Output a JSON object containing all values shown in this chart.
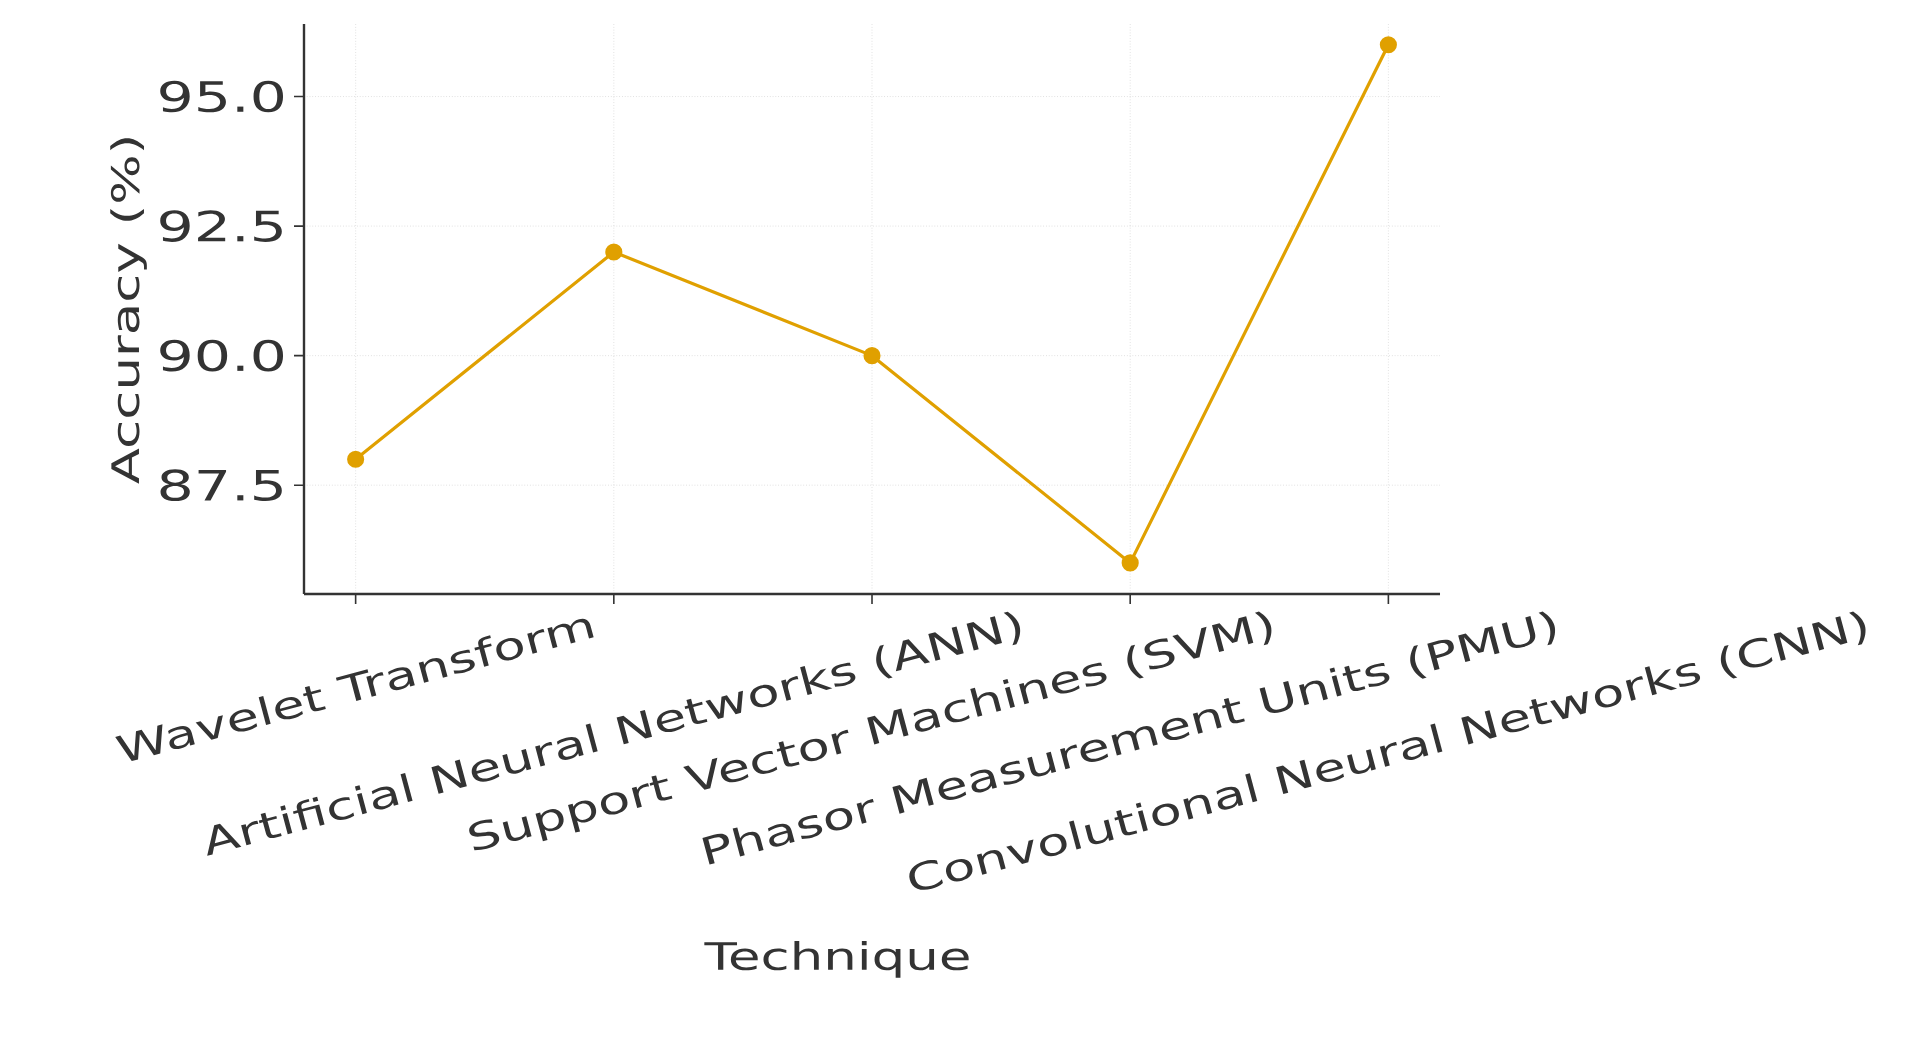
{
  "chart_data": {
    "type": "line",
    "xlabel": "Technique",
    "ylabel": "Accuracy (%)",
    "categories": [
      "Wavelet Transform",
      "Artificial Neural Networks (ANN)",
      "Support Vector Machines (SVM)",
      "Phasor Measurement Units (PMU)",
      "Convolutional Neural Networks (CNN)"
    ],
    "values": [
      88,
      92,
      90,
      86,
      96
    ],
    "color": "#e0a000",
    "marker": "circle",
    "line_style": "solid",
    "ylim": [
      85.4,
      96.4
    ],
    "yticks": [
      {
        "value": 87.5,
        "label": "87.5"
      },
      {
        "value": 90,
        "label": "90.0"
      },
      {
        "value": 92.5,
        "label": "92.5"
      },
      {
        "value": 95,
        "label": "95.0"
      }
    ],
    "grid": true
  }
}
